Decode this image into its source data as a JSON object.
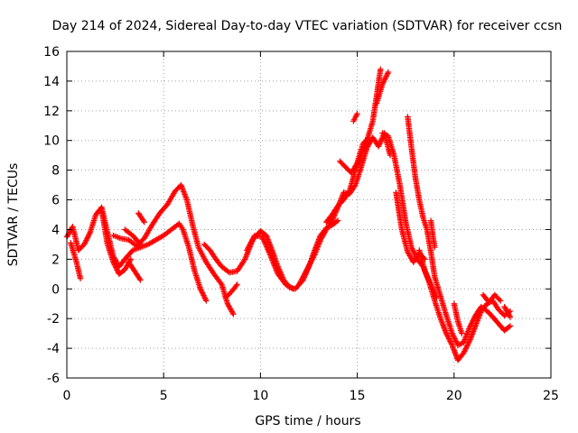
{
  "chart_data": {
    "type": "scatter",
    "title": "Day 214 of 2024, Sidereal Day-to-day VTEC variation (SDTVAR) for receiver ccsn",
    "xlabel": "GPS time / hours",
    "ylabel": "SDTVAR / TECUs",
    "xlim": [
      0,
      25
    ],
    "ylim": [
      -6,
      16
    ],
    "xticks": [
      "0",
      "5",
      "10",
      "15",
      "20",
      "25"
    ],
    "yticks": [
      "-6",
      "-4",
      "-2",
      "0",
      "2",
      "4",
      "6",
      "8",
      "10",
      "12",
      "14",
      "16"
    ],
    "grid": true,
    "marker": "plus",
    "color": "#ff0000",
    "series": [
      {
        "points": [
          [
            0.0,
            3.5
          ],
          [
            0.3,
            4.2
          ],
          [
            0.6,
            2.6
          ],
          [
            0.9,
            3.0
          ],
          [
            1.2,
            3.8
          ],
          [
            1.5,
            5.0
          ],
          [
            1.8,
            5.5
          ],
          [
            2.1,
            3.8
          ],
          [
            2.4,
            2.2
          ],
          [
            2.7,
            1.5
          ],
          [
            3.0,
            2.0
          ],
          [
            3.4,
            2.6
          ],
          [
            3.8,
            2.8
          ],
          [
            4.2,
            3.0
          ],
          [
            4.6,
            3.3
          ],
          [
            5.0,
            3.6
          ],
          [
            5.4,
            4.0
          ],
          [
            5.8,
            4.4
          ],
          [
            6.0,
            4.0
          ],
          [
            6.3,
            2.8
          ],
          [
            6.6,
            1.2
          ],
          [
            6.9,
            0.0
          ],
          [
            7.2,
            -0.8
          ]
        ]
      },
      {
        "points": [
          [
            0.2,
            3.1
          ],
          [
            0.5,
            1.8
          ],
          [
            0.7,
            0.7
          ]
        ]
      },
      {
        "points": [
          [
            1.8,
            5.3
          ],
          [
            2.1,
            3.0
          ],
          [
            2.4,
            1.8
          ],
          [
            2.7,
            1.0
          ],
          [
            3.0,
            1.3
          ],
          [
            3.3,
            2.0
          ]
        ]
      },
      {
        "points": [
          [
            2.4,
            3.6
          ],
          [
            2.8,
            3.4
          ],
          [
            3.2,
            3.3
          ],
          [
            3.6,
            2.9
          ],
          [
            4.0,
            3.4
          ],
          [
            4.4,
            4.3
          ],
          [
            4.8,
            5.1
          ],
          [
            5.2,
            5.7
          ],
          [
            5.6,
            6.6
          ],
          [
            5.9,
            7.0
          ],
          [
            6.2,
            6.0
          ],
          [
            6.5,
            4.3
          ],
          [
            6.8,
            2.8
          ],
          [
            7.2,
            1.8
          ],
          [
            7.6,
            1.0
          ],
          [
            8.0,
            0.3
          ],
          [
            8.3,
            -1.0
          ],
          [
            8.6,
            -1.7
          ]
        ]
      },
      {
        "points": [
          [
            3.0,
            4.0
          ],
          [
            3.4,
            3.6
          ],
          [
            3.8,
            3.0
          ]
        ]
      },
      {
        "points": [
          [
            3.7,
            5.1
          ],
          [
            4.0,
            4.5
          ]
        ]
      },
      {
        "points": [
          [
            3.2,
            1.8
          ],
          [
            3.5,
            1.2
          ],
          [
            3.8,
            0.6
          ]
        ]
      },
      {
        "points": [
          [
            8.2,
            -0.6
          ],
          [
            8.5,
            -0.2
          ],
          [
            8.8,
            0.3
          ]
        ]
      },
      {
        "points": [
          [
            7.1,
            3.0
          ],
          [
            7.4,
            2.6
          ],
          [
            7.7,
            2.0
          ],
          [
            8.0,
            1.5
          ],
          [
            8.4,
            1.1
          ],
          [
            8.8,
            1.2
          ],
          [
            9.2,
            2.0
          ],
          [
            9.6,
            3.3
          ],
          [
            10.0,
            3.9
          ],
          [
            10.3,
            3.6
          ],
          [
            10.6,
            2.6
          ],
          [
            10.9,
            1.5
          ],
          [
            11.2,
            0.6
          ],
          [
            11.5,
            0.1
          ],
          [
            11.8,
            0.0
          ],
          [
            12.2,
            0.6
          ],
          [
            12.5,
            1.5
          ],
          [
            12.8,
            2.6
          ],
          [
            13.1,
            3.6
          ],
          [
            13.4,
            4.1
          ],
          [
            13.7,
            4.3
          ],
          [
            14.0,
            4.6
          ]
        ]
      },
      {
        "points": [
          [
            9.3,
            2.6
          ],
          [
            9.7,
            3.6
          ],
          [
            10.1,
            3.5
          ],
          [
            10.5,
            2.3
          ],
          [
            10.9,
            1.0
          ],
          [
            11.3,
            0.3
          ],
          [
            11.7,
            0.0
          ]
        ]
      },
      {
        "points": [
          [
            12.0,
            0.3
          ],
          [
            12.4,
            1.3
          ],
          [
            12.8,
            2.3
          ],
          [
            13.1,
            3.3
          ],
          [
            13.4,
            4.0
          ],
          [
            13.7,
            4.6
          ],
          [
            14.0,
            5.5
          ],
          [
            14.3,
            6.5
          ],
          [
            14.6,
            6.4
          ],
          [
            14.9,
            7.0
          ],
          [
            15.2,
            8.2
          ],
          [
            15.5,
            9.5
          ],
          [
            15.8,
            10.2
          ],
          [
            16.1,
            9.6
          ],
          [
            16.4,
            10.5
          ],
          [
            16.7,
            9.0
          ]
        ]
      },
      {
        "points": [
          [
            13.4,
            4.5
          ],
          [
            13.7,
            5.0
          ],
          [
            14.0,
            5.6
          ],
          [
            14.3,
            6.0
          ],
          [
            14.6,
            6.6
          ],
          [
            14.9,
            8.0
          ],
          [
            15.2,
            9.0
          ],
          [
            15.5,
            10.0
          ],
          [
            15.8,
            11.3
          ],
          [
            16.0,
            13.0
          ],
          [
            16.2,
            14.8
          ]
        ]
      },
      {
        "points": [
          [
            14.1,
            8.6
          ],
          [
            14.4,
            8.2
          ],
          [
            14.7,
            7.8
          ],
          [
            15.0,
            8.5
          ],
          [
            15.3,
            9.8
          ],
          [
            15.6,
            10.2
          ]
        ]
      },
      {
        "points": [
          [
            14.8,
            11.3
          ],
          [
            15.0,
            11.8
          ]
        ]
      },
      {
        "points": [
          [
            16.0,
            12.5
          ],
          [
            16.3,
            13.8
          ],
          [
            16.6,
            14.6
          ]
        ]
      },
      {
        "points": [
          [
            16.3,
            10.5
          ],
          [
            16.6,
            10.3
          ],
          [
            16.9,
            9.0
          ],
          [
            17.2,
            7.0
          ],
          [
            17.5,
            4.5
          ],
          [
            17.8,
            2.8
          ],
          [
            18.1,
            2.0
          ],
          [
            18.4,
            1.5
          ],
          [
            18.7,
            0.5
          ],
          [
            19.0,
            -0.8
          ],
          [
            19.3,
            -2.0
          ],
          [
            19.6,
            -3.0
          ],
          [
            19.9,
            -3.8
          ],
          [
            20.2,
            -4.8
          ],
          [
            20.5,
            -4.3
          ],
          [
            20.8,
            -3.5
          ],
          [
            21.1,
            -2.5
          ],
          [
            21.4,
            -1.5
          ],
          [
            21.7,
            -1.0
          ],
          [
            22.0,
            -0.8
          ],
          [
            22.3,
            -1.4
          ],
          [
            22.6,
            -1.8
          ],
          [
            22.9,
            -1.5
          ]
        ]
      },
      {
        "points": [
          [
            17.0,
            6.5
          ],
          [
            17.3,
            4.0
          ],
          [
            17.6,
            2.5
          ],
          [
            17.9,
            1.8
          ],
          [
            18.2,
            2.4
          ],
          [
            18.5,
            2.0
          ]
        ]
      },
      {
        "points": [
          [
            17.6,
            11.6
          ],
          [
            17.8,
            9.5
          ],
          [
            18.0,
            7.5
          ],
          [
            18.2,
            6.0
          ],
          [
            18.4,
            4.8
          ],
          [
            18.6,
            4.0
          ],
          [
            18.8,
            2.5
          ],
          [
            19.0,
            0.8
          ],
          [
            19.3,
            -0.5
          ],
          [
            19.6,
            -1.8
          ],
          [
            19.9,
            -3.0
          ],
          [
            20.2,
            -3.8
          ],
          [
            20.5,
            -3.6
          ],
          [
            20.8,
            -2.6
          ],
          [
            21.1,
            -1.8
          ],
          [
            21.4,
            -1.2
          ],
          [
            21.8,
            -1.6
          ],
          [
            22.2,
            -2.2
          ],
          [
            22.6,
            -2.8
          ],
          [
            22.9,
            -2.5
          ]
        ]
      },
      {
        "points": [
          [
            18.2,
            2.6
          ],
          [
            18.5,
            1.2
          ],
          [
            18.8,
            0.3
          ],
          [
            19.1,
            -0.6
          ]
        ]
      },
      {
        "points": [
          [
            18.8,
            4.6
          ],
          [
            18.9,
            3.6
          ],
          [
            19.0,
            2.8
          ]
        ]
      },
      {
        "points": [
          [
            20.0,
            -1.0
          ],
          [
            20.2,
            -2.2
          ],
          [
            20.4,
            -3.0
          ]
        ]
      },
      {
        "points": [
          [
            21.5,
            -0.4
          ],
          [
            21.8,
            -0.9
          ],
          [
            22.1,
            -0.4
          ],
          [
            22.4,
            -0.8
          ]
        ]
      },
      {
        "points": [
          [
            22.6,
            -1.2
          ],
          [
            22.9,
            -1.9
          ]
        ]
      }
    ]
  }
}
